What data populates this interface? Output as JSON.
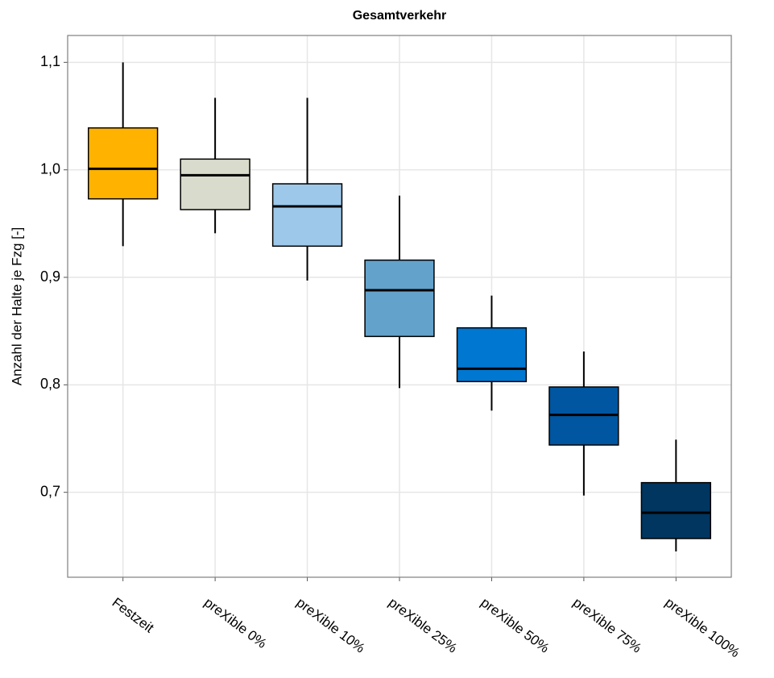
{
  "chart_data": {
    "type": "boxplot",
    "title": "Gesamtverkehr",
    "y_label": "Anzahl der Halte je Fzg [-]",
    "categories": [
      "Festzeit",
      "preXible 0%",
      "preXible 10%",
      "preXible 25%",
      "preXible 50%",
      "preXible 75%",
      "preXible 100%"
    ],
    "colors": [
      "#ffb300",
      "#d9dccc",
      "#9dc8ea",
      "#63a2cb",
      "#0077d0",
      "#0056a0",
      "#003660"
    ],
    "boxes": [
      {
        "whisker_low": 0.929,
        "q1": 0.973,
        "median": 1.001,
        "q3": 1.039,
        "whisker_high": 1.1
      },
      {
        "whisker_low": 0.941,
        "q1": 0.963,
        "median": 0.995,
        "q3": 1.01,
        "whisker_high": 1.067
      },
      {
        "whisker_low": 0.897,
        "q1": 0.929,
        "median": 0.966,
        "q3": 0.987,
        "whisker_high": 1.067
      },
      {
        "whisker_low": 0.797,
        "q1": 0.845,
        "median": 0.888,
        "q3": 0.916,
        "whisker_high": 0.976
      },
      {
        "whisker_low": 0.776,
        "q1": 0.803,
        "median": 0.815,
        "q3": 0.853,
        "whisker_high": 0.883
      },
      {
        "whisker_low": 0.697,
        "q1": 0.744,
        "median": 0.772,
        "q3": 0.798,
        "whisker_high": 0.831
      },
      {
        "whisker_low": 0.645,
        "q1": 0.657,
        "median": 0.681,
        "q3": 0.709,
        "whisker_high": 0.749
      }
    ],
    "ylim": [
      0.621,
      1.125
    ],
    "yticks": [
      {
        "value": 0.7,
        "label": "0,7"
      },
      {
        "value": 0.8,
        "label": "0,8"
      },
      {
        "value": 0.9,
        "label": "0,9"
      },
      {
        "value": 1.0,
        "label": "1,0"
      },
      {
        "value": 1.1,
        "label": "1,1"
      }
    ],
    "grid": true
  }
}
